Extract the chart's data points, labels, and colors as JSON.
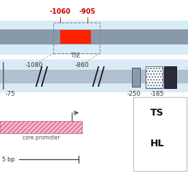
{
  "bg_color": "#ffffff",
  "top_bg_color": "#d8ecf8",
  "chrom_bar_color": "#8899aa",
  "red_box_color": "#ff2200",
  "mid_bg_color": "#dceaf5",
  "mid_bar_color": "#b0c0d0",
  "label_red": "#cc0000",
  "label_dark": "#333333",
  "top_labels": [
    "-1060",
    "-905"
  ],
  "tse_label": "TSE",
  "second_row_labels": [
    "-1080",
    "-860"
  ],
  "bottom_bar_labels": [
    "-75",
    "-250",
    "-185"
  ],
  "legend_ts": "TS",
  "legend_hl": "HL",
  "core_promoter_label": "core promoter",
  "scale_label": "5 bp"
}
